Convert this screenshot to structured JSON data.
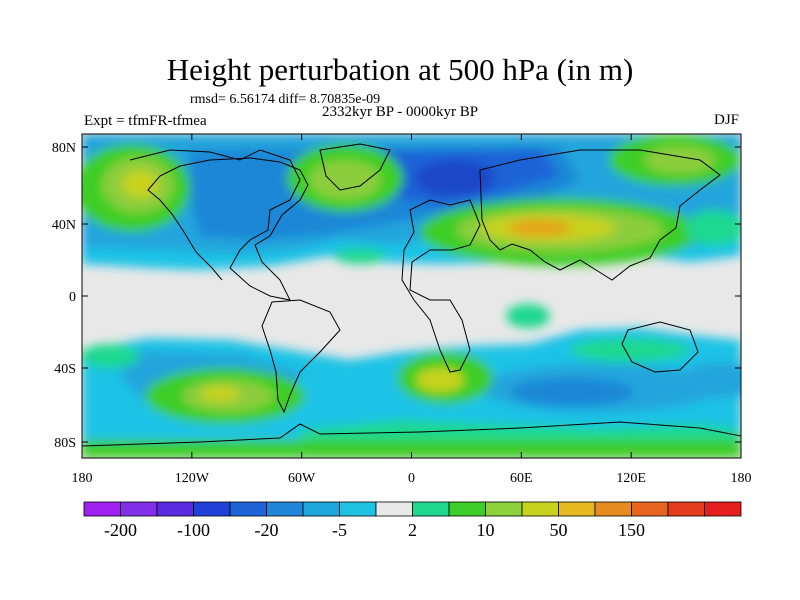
{
  "title": "Height perturbation at 500 hPa (in m)",
  "stats": "rmsd= 6.56174 diff= 8.70835e-09",
  "expt": "Expt = tfmFR-tfmea",
  "period": "2332kyr BP - 0000kyr BP",
  "season": "DJF",
  "lat_ticks": [
    "80N",
    "40N",
    "0",
    "40S",
    "80S"
  ],
  "lon_ticks": [
    "180",
    "120W",
    "60W",
    "0",
    "60E",
    "120E",
    "180"
  ],
  "colorbar": {
    "colors": [
      "#a020f0",
      "#8230e8",
      "#5a2ae0",
      "#2040d8",
      "#1e63d8",
      "#1f86d9",
      "#1ea7dc",
      "#20c2e2",
      "#e8e8e8",
      "#1ed890",
      "#3ccd28",
      "#8cd23c",
      "#c8d21e",
      "#e6b91e",
      "#e68c1e",
      "#e6641e",
      "#e63c1e",
      "#e61e1e"
    ],
    "labels": [
      "-200",
      "-100",
      "-20",
      "-5",
      "2",
      "10",
      "50",
      "150"
    ]
  },
  "palette": {
    "neutral": "#e8e8e8",
    "cyan": "#1ec3e6",
    "light_blue": "#23a5dc",
    "mid_blue": "#1f87d7",
    "blue": "#1e64d7",
    "dark_blue": "#1e46c8",
    "green": "#1ed890",
    "lime": "#3ccd28",
    "yellow_green": "#8ccd3c",
    "olive": "#c8d21e",
    "orange": "#e6a01e"
  }
}
